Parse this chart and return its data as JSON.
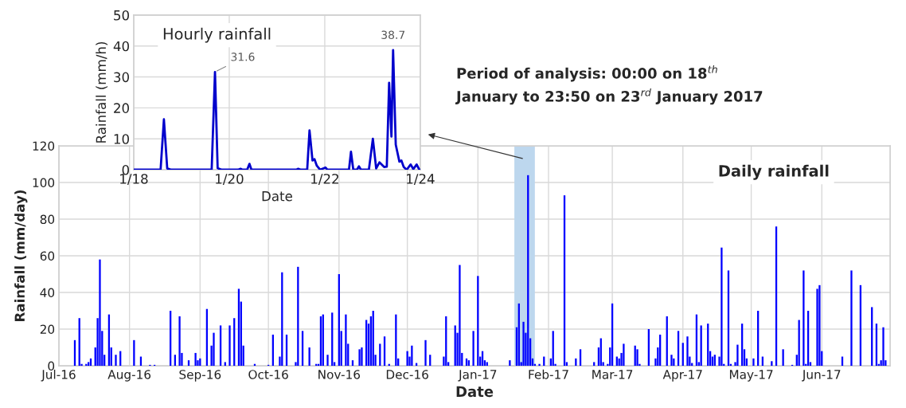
{
  "chart_data": [
    {
      "type": "bar",
      "title": "Daily rainfall",
      "xlabel": "Date",
      "ylabel": "Rainfall (mm/day)",
      "color": "#0000ff",
      "grid": true,
      "annotations": [
        "Period of analysis: 00:00 on 18$^{th}$\nJanuary to 23:50 on 23$^{rd}$ January 2017"
      ],
      "bands": [
        {
          "axis": "x",
          "from": "2017-01-17",
          "to": "2017-01-26",
          "color": "#bdd7ee"
        }
      ],
      "xlim": [
        "2016-07-01",
        "2017-07-01"
      ],
      "xticks": [
        {
          "value": "2016-07-01",
          "label": "Jul-16"
        },
        {
          "value": "2016-08-01",
          "label": "Aug-16"
        },
        {
          "value": "2016-09-01",
          "label": "Sep-16"
        },
        {
          "value": "2016-10-01",
          "label": "Oct-16"
        },
        {
          "value": "2016-11-01",
          "label": "Nov-16"
        },
        {
          "value": "2016-12-01",
          "label": "Dec-16"
        },
        {
          "value": "2017-01-01",
          "label": "Jan-17"
        },
        {
          "value": "2017-02-01",
          "label": "Feb-17"
        },
        {
          "value": "2017-03-01",
          "label": "Mar-17"
        },
        {
          "value": "2017-04-01",
          "label": "Apr-17"
        },
        {
          "value": "2017-05-01",
          "label": "May-17"
        },
        {
          "value": "2017-06-01",
          "label": "Jun-17"
        }
      ],
      "ylim": [
        0,
        120
      ],
      "yticks": [
        0,
        20,
        40,
        60,
        80,
        100,
        120
      ],
      "x": [
        "2016-07-08",
        "2016-07-10",
        "2016-07-11",
        "2016-07-13",
        "2016-07-14",
        "2016-07-15",
        "2016-07-17",
        "2016-07-18",
        "2016-07-19",
        "2016-07-20",
        "2016-07-21",
        "2016-07-23",
        "2016-07-24",
        "2016-07-26",
        "2016-07-28",
        "2016-08-03",
        "2016-08-06",
        "2016-08-10",
        "2016-08-12",
        "2016-08-19",
        "2016-08-21",
        "2016-08-23",
        "2016-08-24",
        "2016-08-27",
        "2016-08-30",
        "2016-08-31",
        "2016-09-01",
        "2016-09-04",
        "2016-09-06",
        "2016-09-07",
        "2016-09-10",
        "2016-09-12",
        "2016-09-14",
        "2016-09-16",
        "2016-09-18",
        "2016-09-19",
        "2016-09-20",
        "2016-09-25",
        "2016-10-01",
        "2016-10-03",
        "2016-10-06",
        "2016-10-07",
        "2016-10-09",
        "2016-10-13",
        "2016-10-14",
        "2016-10-16",
        "2016-10-19",
        "2016-10-22",
        "2016-10-23",
        "2016-10-24",
        "2016-10-25",
        "2016-10-27",
        "2016-10-29",
        "2016-10-30",
        "2016-11-01",
        "2016-11-02",
        "2016-11-04",
        "2016-11-05",
        "2016-11-07",
        "2016-11-10",
        "2016-11-11",
        "2016-11-13",
        "2016-11-14",
        "2016-11-15",
        "2016-11-16",
        "2016-11-17",
        "2016-11-19",
        "2016-11-21",
        "2016-11-23",
        "2016-11-26",
        "2016-11-27",
        "2016-12-01",
        "2016-12-02",
        "2016-12-03",
        "2016-12-05",
        "2016-12-09",
        "2016-12-11",
        "2016-12-17",
        "2016-12-18",
        "2016-12-19",
        "2016-12-22",
        "2016-12-23",
        "2016-12-24",
        "2016-12-25",
        "2016-12-27",
        "2016-12-28",
        "2016-12-30",
        "2017-01-01",
        "2017-01-02",
        "2017-01-03",
        "2017-01-04",
        "2017-01-05",
        "2017-01-15",
        "2017-01-18",
        "2017-01-19",
        "2017-01-20",
        "2017-01-21",
        "2017-01-22",
        "2017-01-23",
        "2017-01-24",
        "2017-01-25",
        "2017-01-26",
        "2017-01-28",
        "2017-01-30",
        "2017-02-02",
        "2017-02-03",
        "2017-02-04",
        "2017-02-08",
        "2017-02-09",
        "2017-02-13",
        "2017-02-15",
        "2017-02-21",
        "2017-02-23",
        "2017-02-24",
        "2017-02-25",
        "2017-02-27",
        "2017-02-28",
        "2017-03-01",
        "2017-03-03",
        "2017-03-04",
        "2017-03-05",
        "2017-03-06",
        "2017-03-11",
        "2017-03-12",
        "2017-03-13",
        "2017-03-17",
        "2017-03-20",
        "2017-03-21",
        "2017-03-22",
        "2017-03-25",
        "2017-03-27",
        "2017-03-28",
        "2017-03-30",
        "2017-04-01",
        "2017-04-03",
        "2017-04-04",
        "2017-04-05",
        "2017-04-07",
        "2017-04-08",
        "2017-04-09",
        "2017-04-12",
        "2017-04-13",
        "2017-04-14",
        "2017-04-15",
        "2017-04-17",
        "2017-04-18",
        "2017-04-19",
        "2017-04-21",
        "2017-04-22",
        "2017-04-24",
        "2017-04-25",
        "2017-04-27",
        "2017-04-28",
        "2017-04-29",
        "2017-05-02",
        "2017-05-04",
        "2017-05-06",
        "2017-05-10",
        "2017-05-12",
        "2017-05-15",
        "2017-05-19",
        "2017-05-21",
        "2017-05-22",
        "2017-05-24",
        "2017-05-25",
        "2017-05-26",
        "2017-05-27",
        "2017-05-30",
        "2017-05-31",
        "2017-06-01",
        "2017-06-10",
        "2017-06-14",
        "2017-06-18",
        "2017-06-23",
        "2017-06-25",
        "2017-06-26",
        "2017-06-27",
        "2017-06-28",
        "2017-06-29"
      ],
      "values": [
        14,
        26,
        1,
        1,
        2,
        4,
        10,
        26,
        58,
        19,
        6,
        28,
        10,
        6,
        8,
        14,
        5,
        0.5,
        0.5,
        30,
        6,
        27,
        7,
        3,
        7,
        3,
        4,
        31,
        11,
        18,
        22,
        2,
        22,
        26,
        42,
        35,
        11,
        1,
        0.5,
        17,
        5,
        51,
        17,
        2,
        54,
        19,
        10,
        1,
        1,
        27,
        28,
        6,
        29,
        2,
        50,
        19,
        28,
        12,
        3,
        9,
        10,
        25,
        23,
        27,
        30,
        6,
        12,
        16,
        1,
        28,
        4,
        8,
        5,
        11,
        1.5,
        14,
        6,
        5,
        27,
        2,
        22,
        18,
        55,
        7,
        4,
        3,
        19,
        49,
        5,
        8,
        3,
        2,
        3,
        21,
        34,
        2,
        24,
        18,
        104,
        15,
        4,
        1,
        1,
        5,
        4,
        19,
        1,
        93,
        2,
        4,
        9,
        2,
        10,
        15,
        2,
        1,
        10,
        34,
        5,
        4,
        7,
        12,
        11,
        9,
        1,
        20,
        4,
        10,
        17,
        27,
        6,
        4,
        19,
        12.5,
        16,
        5,
        1.5,
        28,
        2,
        22,
        23,
        8,
        5,
        6,
        5,
        64.5,
        1,
        52,
        1,
        2,
        11.5,
        23,
        9,
        4,
        4,
        30,
        5,
        2.5,
        76,
        9,
        0.5,
        6,
        25,
        52,
        1,
        30,
        2,
        42,
        44,
        8,
        5,
        52,
        44,
        32,
        23,
        1,
        3,
        21,
        3
      ]
    },
    {
      "type": "line",
      "title": "Hourly rainfall",
      "xlabel": "Date",
      "ylabel": "Rainfall (mm/h)",
      "color": "#0000cc",
      "grid": true,
      "annotations": [
        {
          "text": "31.6",
          "x": "2017-01-19T16:50",
          "y": 31.6
        },
        {
          "text": "38.7",
          "x": "2017-01-23T10:20",
          "y": 38.7
        }
      ],
      "xlim": [
        "2017-01-18",
        "2017-01-24"
      ],
      "xticks": [
        {
          "value": "2017-01-18",
          "label": "1/18"
        },
        {
          "value": "2017-01-20",
          "label": "1/20"
        },
        {
          "value": "2017-01-22",
          "label": "1/22"
        },
        {
          "value": "2017-01-24",
          "label": "1/24"
        }
      ],
      "ylim": [
        0,
        50
      ],
      "yticks": [
        0,
        10,
        20,
        30,
        40,
        50
      ],
      "x": [
        "2017-01-18T00:00",
        "2017-01-18T13:30",
        "2017-01-18T15:10",
        "2017-01-18T16:50",
        "2017-01-18T18:50",
        "2017-01-19T15:10",
        "2017-01-19T16:50",
        "2017-01-19T18:10",
        "2017-01-19T20:10",
        "2017-01-20T04:30",
        "2017-01-20T05:40",
        "2017-01-20T06:40",
        "2017-01-20T09:00",
        "2017-01-20T10:10",
        "2017-01-20T11:10",
        "2017-01-21T09:40",
        "2017-01-21T10:40",
        "2017-01-21T11:50",
        "2017-01-21T15:10",
        "2017-01-21T16:20",
        "2017-01-21T17:50",
        "2017-01-21T18:50",
        "2017-01-21T20:00",
        "2017-01-21T21:40",
        "2017-01-22T00:20",
        "2017-01-22T01:20",
        "2017-01-22T12:10",
        "2017-01-22T13:10",
        "2017-01-22T14:20",
        "2017-01-22T16:10",
        "2017-01-22T17:10",
        "2017-01-22T18:10",
        "2017-01-22T22:10",
        "2017-01-23T00:10",
        "2017-01-23T01:50",
        "2017-01-23T03:30",
        "2017-01-23T05:50",
        "2017-01-23T07:10",
        "2017-01-23T08:20",
        "2017-01-23T09:30",
        "2017-01-23T10:20",
        "2017-01-23T11:40",
        "2017-01-23T13:30",
        "2017-01-23T14:30",
        "2017-01-23T15:40",
        "2017-01-23T17:10",
        "2017-01-23T19:10",
        "2017-01-23T20:30",
        "2017-01-23T22:10",
        "2017-01-23T23:30",
        "2017-01-23T23:50"
      ],
      "values": [
        0,
        0,
        16.3,
        0.4,
        0,
        0,
        31.6,
        0.5,
        0,
        0,
        0.3,
        0,
        0,
        1.9,
        0,
        0,
        0.3,
        0,
        0,
        12.7,
        3,
        3.4,
        1.3,
        0,
        0.7,
        0,
        0,
        5.8,
        0,
        0,
        1.1,
        0,
        0,
        10,
        0.4,
        2.4,
        0.9,
        1,
        28.1,
        10.7,
        38.7,
        8.1,
        2.6,
        3,
        0.9,
        0,
        1.7,
        0.2,
        1.7,
        0,
        0
      ]
    }
  ]
}
